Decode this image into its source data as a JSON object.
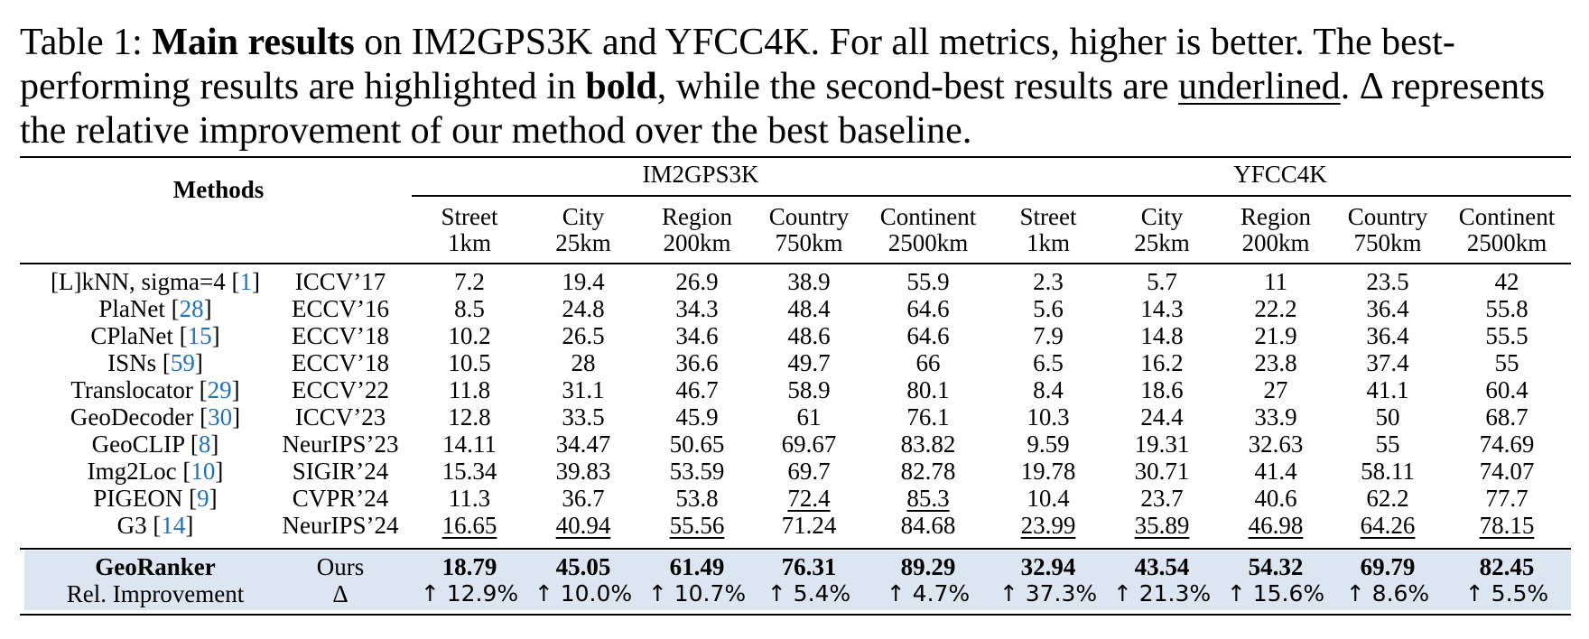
{
  "caption": {
    "label": "Table 1:",
    "bold_title": "Main results",
    "text_1": " on IM2GPS3K and YFCC4K. For all metrics, higher is better.  The best-performing results are highlighted in ",
    "bold_word": "bold",
    "text_2": ", while the second-best results are ",
    "underlined_word": "underlined",
    "text_3": ". Δ represents the relative improvement of our method over the best baseline."
  },
  "header": {
    "methods": "Methods",
    "groups": [
      "IM2GPS3K",
      "YFCC4K"
    ],
    "metrics": [
      {
        "name": "Street",
        "dist": "1km"
      },
      {
        "name": "City",
        "dist": "25km"
      },
      {
        "name": "Region",
        "dist": "200km"
      },
      {
        "name": "Country",
        "dist": "750km"
      },
      {
        "name": "Continent",
        "dist": "2500km"
      },
      {
        "name": "Street",
        "dist": "1km"
      },
      {
        "name": "City",
        "dist": "25km"
      },
      {
        "name": "Region",
        "dist": "200km"
      },
      {
        "name": "Country",
        "dist": "750km"
      },
      {
        "name": "Continent",
        "dist": "2500km"
      }
    ]
  },
  "rows": [
    {
      "method": "[L]kNN, sigma=4 ",
      "ref": "1",
      "venue": "ICCV’17",
      "values": [
        "7.2",
        "19.4",
        "26.9",
        "38.9",
        "55.9",
        "2.3",
        "5.7",
        "11",
        "23.5",
        "42"
      ],
      "underline": []
    },
    {
      "method": "PlaNet ",
      "ref": "28",
      "venue": "ECCV’16",
      "values": [
        "8.5",
        "24.8",
        "34.3",
        "48.4",
        "64.6",
        "5.6",
        "14.3",
        "22.2",
        "36.4",
        "55.8"
      ],
      "underline": []
    },
    {
      "method": "CPlaNet ",
      "ref": "15",
      "venue": "ECCV’18",
      "values": [
        "10.2",
        "26.5",
        "34.6",
        "48.6",
        "64.6",
        "7.9",
        "14.8",
        "21.9",
        "36.4",
        "55.5"
      ],
      "underline": []
    },
    {
      "method": "ISNs ",
      "ref": "59",
      "venue": "ECCV’18",
      "values": [
        "10.5",
        "28",
        "36.6",
        "49.7",
        "66",
        "6.5",
        "16.2",
        "23.8",
        "37.4",
        "55"
      ],
      "underline": []
    },
    {
      "method": "Translocator ",
      "ref": "29",
      "venue": "ECCV’22",
      "values": [
        "11.8",
        "31.1",
        "46.7",
        "58.9",
        "80.1",
        "8.4",
        "18.6",
        "27",
        "41.1",
        "60.4"
      ],
      "underline": []
    },
    {
      "method": "GeoDecoder ",
      "ref": "30",
      "venue": "ICCV’23",
      "values": [
        "12.8",
        "33.5",
        "45.9",
        "61",
        "76.1",
        "10.3",
        "24.4",
        "33.9",
        "50",
        "68.7"
      ],
      "underline": []
    },
    {
      "method": "GeoCLIP ",
      "ref": "8",
      "venue": "NeurIPS’23",
      "values": [
        "14.11",
        "34.47",
        "50.65",
        "69.67",
        "83.82",
        "9.59",
        "19.31",
        "32.63",
        "55",
        "74.69"
      ],
      "underline": []
    },
    {
      "method": "Img2Loc ",
      "ref": "10",
      "venue": "SIGIR’24",
      "values": [
        "15.34",
        "39.83",
        "53.59",
        "69.7",
        "82.78",
        "19.78",
        "30.71",
        "41.4",
        "58.11",
        "74.07"
      ],
      "underline": []
    },
    {
      "method": "PIGEON ",
      "ref": "9",
      "venue": "CVPR’24",
      "values": [
        "11.3",
        "36.7",
        "53.8",
        "72.4",
        "85.3",
        "10.4",
        "23.7",
        "40.6",
        "62.2",
        "77.7"
      ],
      "underline": [
        3,
        4
      ]
    },
    {
      "method": "G3 ",
      "ref": "14",
      "venue": "NeurIPS’24",
      "values": [
        "16.65",
        "40.94",
        "55.56",
        "71.24",
        "84.68",
        "23.99",
        "35.89",
        "46.98",
        "64.26",
        "78.15"
      ],
      "underline": [
        0,
        1,
        2,
        5,
        6,
        7,
        8,
        9
      ]
    }
  ],
  "ours": {
    "method": "GeoRanker",
    "venue": "Ours",
    "values": [
      "18.79",
      "45.05",
      "61.49",
      "76.31",
      "89.29",
      "32.94",
      "43.54",
      "54.32",
      "69.79",
      "82.45"
    ]
  },
  "improvement": {
    "method": "Rel. Improvement",
    "venue": "Δ",
    "values": [
      "↑ 12.9%",
      "↑ 10.0%",
      "↑ 10.7%",
      "↑ 5.4%",
      "↑ 4.7%",
      "↑ 37.3%",
      "↑ 21.3%",
      "↑ 15.6%",
      "↑ 8.6%",
      "↑ 5.5%"
    ]
  },
  "colors": {
    "highlight": "#dce6f1",
    "ref_link": "#1f70c1"
  }
}
